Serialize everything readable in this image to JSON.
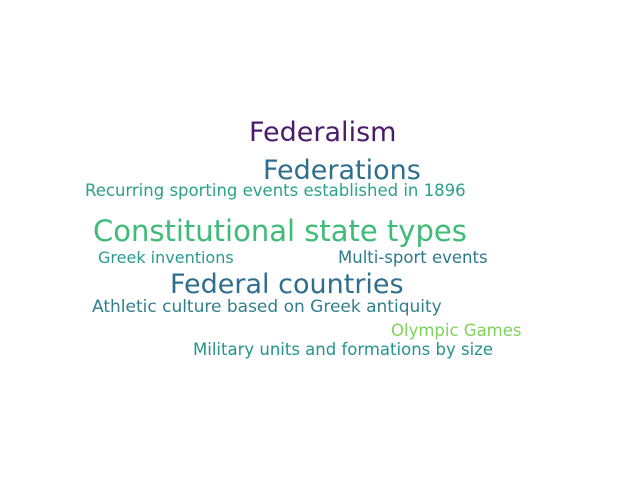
{
  "word_cloud": {
    "words": [
      {
        "id": "federalism",
        "text": "Federalism",
        "color": "#4a1a6b"
      },
      {
        "id": "federations",
        "text": "Federations",
        "color": "#2f6f8e"
      },
      {
        "id": "recurring",
        "text": "Recurring sporting events established in 1896",
        "color": "#2ba08a"
      },
      {
        "id": "constitutional",
        "text": "Constitutional state types",
        "color": "#3dbb77"
      },
      {
        "id": "greek_inventions",
        "text": "Greek inventions",
        "color": "#2a9a8f"
      },
      {
        "id": "multi_sport",
        "text": "Multi-sport events",
        "color": "#2b7a8c"
      },
      {
        "id": "federal_countries",
        "text": "Federal countries",
        "color": "#2e6e8e"
      },
      {
        "id": "athletic_culture",
        "text": "Athletic culture based on Greek antiquity",
        "color": "#2f7f8e"
      },
      {
        "id": "olympic_games",
        "text": "Olympic Games",
        "color": "#7fd25a"
      },
      {
        "id": "military_units",
        "text": "Military units and formations by size",
        "color": "#24948c"
      }
    ]
  }
}
